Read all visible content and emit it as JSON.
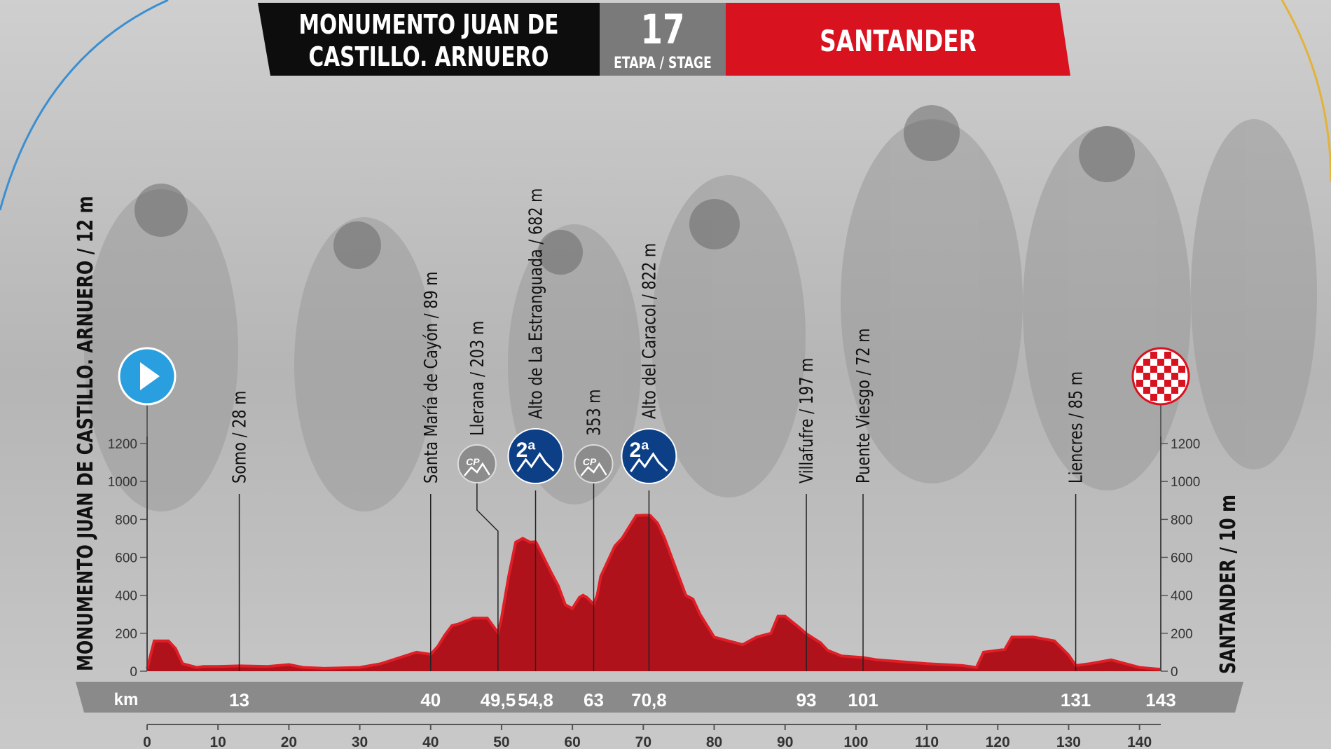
{
  "header": {
    "start_line1": "MONUMENTO JUAN DE",
    "start_line2": "CASTILLO. ARNUERO",
    "stage_number": "17",
    "stage_label": "ETAPA / STAGE",
    "finish": "SANTANDER"
  },
  "colors": {
    "profile_red": "#b0121b",
    "profile_top": "#e01e26",
    "km_band": "#8a8a8a",
    "climb_badge": "#0c3f86",
    "cp_badge": "#8c8c8c",
    "start_marker": "#2a9fe0",
    "finish_red": "#d9121f"
  },
  "chart_data": {
    "type": "area",
    "title": "",
    "xlabel": "",
    "ylabel": "",
    "xlim": [
      0,
      143
    ],
    "ylim": [
      0,
      1200
    ],
    "x_ticks": [
      "0",
      "10",
      "20",
      "30",
      "40",
      "50",
      "60",
      "70",
      "80",
      "90",
      "100",
      "110",
      "120",
      "130",
      "140"
    ],
    "y_ticks": [
      "0",
      "200",
      "400",
      "600",
      "800",
      "1000",
      "1200"
    ],
    "km_axis_label": "km",
    "start_label": "MONUMENTO JUAN DE CASTILLO. ARNUERO / 12 m",
    "finish_label": "SANTANDER / 10 m",
    "series": [
      {
        "x": [
          0,
          1,
          3,
          4,
          5,
          6,
          7,
          8,
          9,
          10,
          13,
          17,
          20,
          22,
          25,
          30,
          33,
          38,
          40,
          41,
          42,
          43,
          44,
          46,
          48,
          49.5,
          50,
          51,
          52,
          53,
          54,
          54.8,
          55,
          57,
          58,
          59,
          60,
          61,
          61.5,
          62,
          63,
          63.5,
          64,
          65,
          66,
          67,
          68,
          69,
          70,
          70.8,
          71,
          72,
          73,
          75,
          76,
          77,
          78,
          80,
          82,
          84,
          86,
          88,
          89,
          90,
          92,
          93,
          95,
          96,
          98,
          100,
          101,
          103,
          110,
          115,
          117,
          118,
          120,
          121,
          122,
          125,
          128,
          130,
          131,
          133,
          136,
          140,
          143
        ],
        "y": [
          12,
          160,
          160,
          120,
          40,
          30,
          20,
          25,
          25,
          25,
          28,
          25,
          35,
          20,
          15,
          20,
          40,
          100,
          89,
          130,
          190,
          240,
          250,
          280,
          280,
          203,
          280,
          500,
          680,
          700,
          680,
          682,
          670,
          520,
          450,
          350,
          330,
          390,
          400,
          390,
          353,
          400,
          500,
          580,
          660,
          700,
          760,
          820,
          822,
          822,
          820,
          780,
          700,
          500,
          400,
          380,
          300,
          180,
          160,
          140,
          180,
          200,
          290,
          290,
          230,
          197,
          150,
          110,
          80,
          75,
          72,
          60,
          40,
          30,
          20,
          100,
          110,
          115,
          180,
          180,
          160,
          85,
          30,
          40,
          60,
          20,
          10
        ]
      }
    ],
    "markers": [
      {
        "km": "13",
        "label": "Somo / 28 m",
        "type": "point"
      },
      {
        "km": "40",
        "label": "Santa María de Cayón / 89 m",
        "type": "point"
      },
      {
        "km": "49,5",
        "label": "Llerana / 203 m",
        "type": "cp",
        "badge": "CP"
      },
      {
        "km": "54,8",
        "label": "Alto de La Estranguada / 682 m",
        "type": "climb",
        "badge": "2ª"
      },
      {
        "km": "63",
        "label": "353 m",
        "type": "cp",
        "badge": "CP"
      },
      {
        "km": "70,8",
        "label": "Alto del Caracol / 822 m",
        "type": "climb",
        "badge": "2ª"
      },
      {
        "km": "93",
        "label": "Villafufre / 197 m",
        "type": "point"
      },
      {
        "km": "101",
        "label": "Puente Viesgo / 72 m",
        "type": "point"
      },
      {
        "km": "131",
        "label": "Liencres / 85 m",
        "type": "point"
      },
      {
        "km": "143",
        "label": "",
        "type": "finish"
      }
    ]
  }
}
